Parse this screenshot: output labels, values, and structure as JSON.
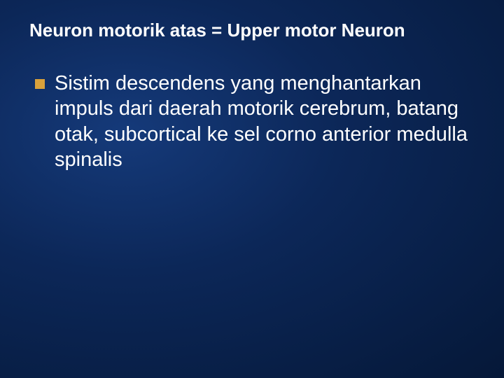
{
  "slide": {
    "title": "Neuron motorik atas = Upper motor Neuron",
    "bullets": [
      {
        "text": "Sistim descendens yang menghantarkan impuls dari daerah motorik cerebrum, batang otak, subcortical ke sel corno anterior medulla spinalis"
      }
    ],
    "style": {
      "background_gradient_inner": "#153a7a",
      "background_gradient_mid": "#0c2758",
      "background_gradient_outer": "#051838",
      "title_color": "#ffffff",
      "title_fontsize": 26,
      "title_fontweight": "bold",
      "body_color": "#ffffff",
      "body_fontsize": 29,
      "bullet_marker_color": "#d9a13b",
      "bullet_marker_size": 14,
      "font_family": "Tahoma, Verdana, Arial, sans-serif",
      "slide_width": 720,
      "slide_height": 540
    }
  }
}
